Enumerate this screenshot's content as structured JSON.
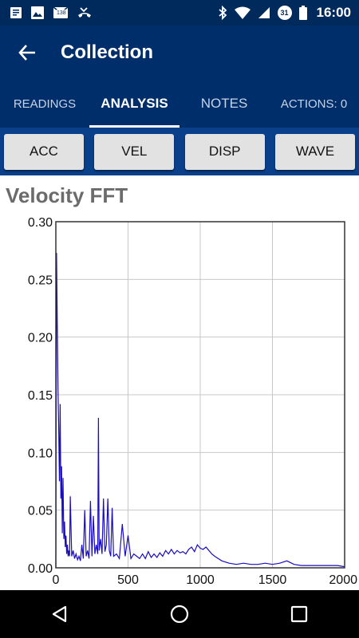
{
  "status_bar": {
    "time": "16:00",
    "notification_badge": "138",
    "calendar_day": "31",
    "doc_count": "3",
    "icons": [
      "notes-icon",
      "gallery-icon",
      "email-icon",
      "missed-call-icon",
      "bluetooth-icon",
      "wifi-icon",
      "signal-icon",
      "battery-icon"
    ]
  },
  "app_bar": {
    "title": "Collection"
  },
  "tabs": [
    {
      "label": "READINGS",
      "active": false
    },
    {
      "label": "ANALYSIS",
      "active": true
    },
    {
      "label": "NOTES",
      "active": false
    },
    {
      "label": "ACTIONS: 0",
      "active": false
    }
  ],
  "mode_buttons": [
    {
      "label": "ACC"
    },
    {
      "label": "VEL"
    },
    {
      "label": "DISP"
    },
    {
      "label": "WAVE"
    }
  ],
  "chart_title": "Velocity FFT",
  "colors": {
    "primary": "#002e6a",
    "button_row": "#0a3f8a",
    "series": "#1a0dbf"
  },
  "chart_data": {
    "type": "line",
    "title": "Velocity FFT",
    "xlabel": "",
    "ylabel": "",
    "xlim": [
      0,
      2000
    ],
    "ylim": [
      0,
      0.3
    ],
    "x_ticks": [
      0,
      500,
      1000,
      1500,
      2000
    ],
    "y_ticks": [
      "0.00",
      "0.05",
      "0.10",
      "0.15",
      "0.20",
      "0.25",
      "0.30"
    ],
    "grid": true,
    "series": [
      {
        "x": [
          0,
          5,
          10,
          15,
          20,
          25,
          30,
          35,
          40,
          45,
          50,
          55,
          60,
          65,
          70,
          75,
          80,
          85,
          90,
          95,
          100,
          110,
          120,
          130,
          140,
          150,
          160,
          170,
          180,
          190,
          200,
          210,
          220,
          230,
          240,
          250,
          260,
          270,
          280,
          290,
          295,
          300,
          310,
          320,
          330,
          340,
          350,
          360,
          370,
          380,
          390,
          400,
          420,
          440,
          460,
          480,
          500,
          520,
          540,
          560,
          580,
          600,
          620,
          640,
          660,
          680,
          700,
          720,
          740,
          760,
          780,
          800,
          820,
          840,
          860,
          880,
          900,
          920,
          940,
          960,
          980,
          1000,
          1020,
          1040,
          1060,
          1080,
          1100,
          1150,
          1200,
          1250,
          1300,
          1350,
          1400,
          1450,
          1500,
          1550,
          1600,
          1650,
          1700,
          1750,
          1800,
          1850,
          1900,
          1950,
          2000
        ],
        "y": [
          0.0,
          0.273,
          0.212,
          0.155,
          0.12,
          0.075,
          0.142,
          0.06,
          0.088,
          0.03,
          0.078,
          0.025,
          0.04,
          0.018,
          0.028,
          0.012,
          0.02,
          0.01,
          0.015,
          0.01,
          0.062,
          0.01,
          0.015,
          0.008,
          0.012,
          0.007,
          0.01,
          0.006,
          0.02,
          0.008,
          0.05,
          0.01,
          0.015,
          0.008,
          0.058,
          0.01,
          0.045,
          0.012,
          0.02,
          0.012,
          0.13,
          0.015,
          0.025,
          0.012,
          0.06,
          0.014,
          0.02,
          0.06,
          0.015,
          0.01,
          0.052,
          0.01,
          0.012,
          0.008,
          0.038,
          0.01,
          0.028,
          0.008,
          0.012,
          0.01,
          0.008,
          0.012,
          0.008,
          0.014,
          0.009,
          0.012,
          0.009,
          0.013,
          0.01,
          0.015,
          0.012,
          0.016,
          0.012,
          0.015,
          0.013,
          0.014,
          0.012,
          0.016,
          0.018,
          0.014,
          0.02,
          0.017,
          0.016,
          0.018,
          0.015,
          0.012,
          0.01,
          0.006,
          0.004,
          0.003,
          0.004,
          0.003,
          0.003,
          0.004,
          0.003,
          0.004,
          0.006,
          0.003,
          0.002,
          0.002,
          0.002,
          0.002,
          0.002,
          0.002,
          0.001
        ]
      }
    ]
  }
}
